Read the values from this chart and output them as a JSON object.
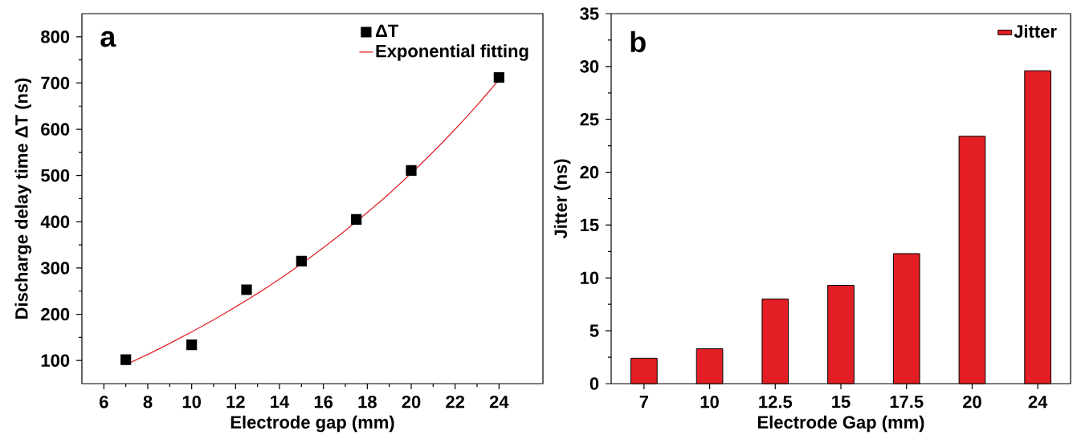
{
  "chart_data": [
    {
      "type": "scatter",
      "xlabel": "Electrode gap (mm)",
      "ylabel": "Discharge delay time ΔT (ns)",
      "annotations": [
        "a"
      ],
      "xlim": [
        5,
        26
      ],
      "xticks": [
        6,
        8,
        10,
        12,
        14,
        16,
        18,
        20,
        22,
        24
      ],
      "ylim": [
        50,
        850
      ],
      "yticks": [
        100,
        200,
        300,
        400,
        500,
        600,
        700,
        800
      ],
      "legend": "top right",
      "series": [
        {
          "name": "ΔT",
          "type": "scatter",
          "marker": "square",
          "color": "#000000",
          "x": [
            7,
            10,
            12.5,
            15,
            17.5,
            20,
            24
          ],
          "values": [
            102,
            134,
            253,
            315,
            405,
            511,
            712
          ]
        },
        {
          "name": "Exponential fitting",
          "type": "line",
          "marker": "none",
          "color": "#e0252a",
          "x": [
            7,
            8,
            9,
            10,
            11,
            12,
            13,
            14,
            15,
            16,
            17,
            18,
            19,
            20,
            21,
            22,
            23,
            24
          ],
          "values": [
            91,
            113,
            137,
            162,
            188,
            216,
            245,
            276,
            309,
            344,
            381,
            420,
            461,
            505,
            551,
            600,
            652,
            707
          ]
        }
      ]
    },
    {
      "type": "bar",
      "xlabel": "Electrode Gap (mm)",
      "ylabel": "Jitter  (ns)",
      "annotations": [
        "b"
      ],
      "categories": [
        "7",
        "10",
        "12.5",
        "15",
        "17.5",
        "20",
        "24"
      ],
      "ylim": [
        0,
        35
      ],
      "yticks": [
        0,
        5,
        10,
        15,
        20,
        25,
        30,
        35
      ],
      "legend": "top right",
      "series": [
        {
          "name": "Jitter",
          "color": "#e31e24",
          "values": [
            2.4,
            3.3,
            8.0,
            9.3,
            12.3,
            23.4,
            29.6
          ]
        }
      ]
    }
  ]
}
